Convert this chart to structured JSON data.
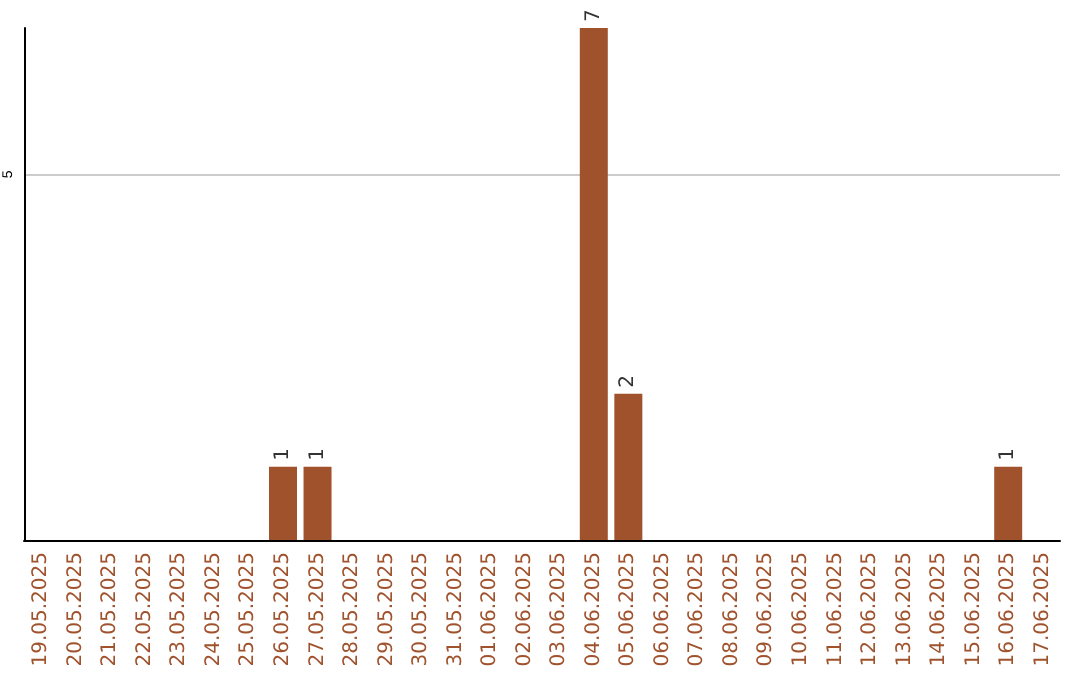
{
  "chart_data": {
    "type": "bar",
    "categories": [
      "19.05.2025",
      "20.05.2025",
      "21.05.2025",
      "22.05.2025",
      "23.05.2025",
      "24.05.2025",
      "25.05.2025",
      "26.05.2025",
      "27.05.2025",
      "28.05.2025",
      "29.05.2025",
      "30.05.2025",
      "31.05.2025",
      "01.06.2025",
      "02.06.2025",
      "03.06.2025",
      "04.06.2025",
      "05.06.2025",
      "06.06.2025",
      "07.06.2025",
      "08.06.2025",
      "09.06.2025",
      "10.06.2025",
      "11.06.2025",
      "12.06.2025",
      "13.06.2025",
      "14.06.2025",
      "15.06.2025",
      "16.06.2025",
      "17.06.2025"
    ],
    "values": [
      0,
      0,
      0,
      0,
      0,
      0,
      0,
      1,
      1,
      0,
      0,
      0,
      0,
      0,
      0,
      0,
      7,
      2,
      0,
      0,
      0,
      0,
      0,
      0,
      0,
      0,
      0,
      0,
      1,
      0
    ],
    "color": "#a0522d",
    "value_labels": [
      null,
      null,
      null,
      null,
      null,
      null,
      null,
      "1",
      "1",
      null,
      null,
      null,
      null,
      null,
      null,
      null,
      "7",
      "2",
      null,
      null,
      null,
      null,
      null,
      null,
      null,
      null,
      null,
      null,
      "1",
      null
    ],
    "ylim": [
      0,
      7
    ],
    "yticks": [
      5
    ],
    "grid": "y"
  }
}
